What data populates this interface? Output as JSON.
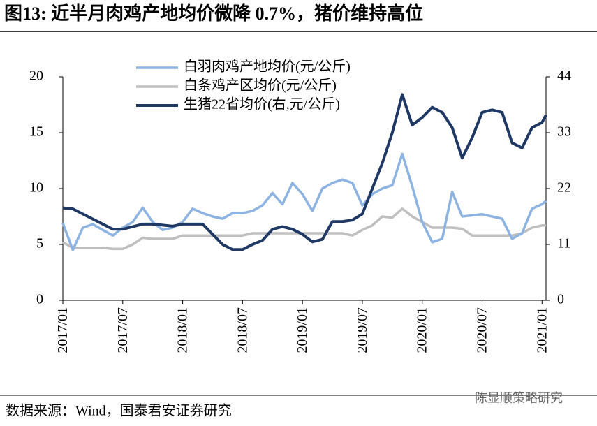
{
  "chart_data": {
    "type": "line",
    "title": "图13: 近半月肉鸡产地均价微降 0.7%，猪价维持高位",
    "source": "数据来源：Wind，国泰君安证券研究",
    "watermark": "陈显顺策略研究",
    "legend": "upper left",
    "x": [
      0,
      1,
      2,
      3,
      4,
      5,
      6,
      7,
      8,
      9,
      10,
      11,
      12,
      13,
      14,
      15,
      16,
      17,
      18,
      19,
      20,
      21,
      22,
      23,
      24,
      25,
      26,
      27,
      28,
      29,
      30,
      31,
      32,
      33,
      34,
      35,
      36,
      37,
      38,
      39,
      40,
      41,
      42,
      43,
      44,
      45,
      46,
      47,
      48,
      48.4
    ],
    "xlim": [
      0,
      48.4
    ],
    "xticks": [
      {
        "value": 0,
        "label": "2017/01"
      },
      {
        "value": 6,
        "label": "2017/07"
      },
      {
        "value": 12,
        "label": "2018/01"
      },
      {
        "value": 18,
        "label": "2018/07"
      },
      {
        "value": 24,
        "label": "2019/01"
      },
      {
        "value": 30,
        "label": "2019/07"
      },
      {
        "value": 36,
        "label": "2020/01"
      },
      {
        "value": 42,
        "label": "2020/07"
      },
      {
        "value": 48,
        "label": "2021/01"
      }
    ],
    "ylim": [
      0,
      20
    ],
    "yticks": [
      0,
      5,
      10,
      15,
      20
    ],
    "y2lim": [
      0,
      44
    ],
    "y2ticks": [
      0,
      11,
      22,
      33,
      44
    ],
    "series": [
      {
        "name": "白羽肉鸡产地均价(元/公斤)",
        "color": "#8db3e2",
        "axis": "y",
        "values": [
          6.9,
          4.5,
          6.5,
          6.8,
          6.3,
          5.8,
          6.5,
          7,
          8.3,
          7,
          6.3,
          6.5,
          7,
          8.2,
          7.8,
          7.5,
          7.3,
          7.8,
          7.8,
          8,
          8.5,
          9.6,
          8.6,
          10.5,
          9.5,
          8,
          10,
          10.5,
          10.8,
          10.5,
          8.5,
          9.5,
          10,
          10.3,
          13.1,
          10.2,
          7,
          5.2,
          5.5,
          9.7,
          7.5,
          7.6,
          7.7,
          7.5,
          7.3,
          5.5,
          6,
          8.2,
          8.6,
          8.9
        ]
      },
      {
        "name": "白条鸡产区均价(元/公斤)",
        "color": "#bfbfbf",
        "axis": "y",
        "values": [
          5.2,
          4.7,
          4.7,
          4.7,
          4.7,
          4.6,
          4.6,
          5,
          5.6,
          5.5,
          5.5,
          5.5,
          5.8,
          5.8,
          5.8,
          5.8,
          5.8,
          5.8,
          5.8,
          6,
          6,
          6,
          6,
          6,
          6,
          6,
          6,
          6,
          6,
          5.8,
          6.3,
          6.7,
          7.5,
          7.4,
          8.2,
          7.5,
          7,
          6.5,
          6.5,
          6.5,
          6.4,
          5.8,
          5.8,
          5.8,
          5.8,
          5.8,
          6,
          6.5,
          6.7,
          6.7
        ]
      },
      {
        "name": "生猪22省均价(右,元/公斤)",
        "color": "#1f3864",
        "axis": "y2",
        "values": [
          18.2,
          18,
          17,
          16,
          15,
          14,
          14,
          14.5,
          15,
          15,
          14.8,
          14.6,
          15,
          15,
          15,
          13,
          11,
          10,
          10,
          11,
          11.8,
          14,
          14.5,
          14,
          13,
          11.5,
          12,
          15.5,
          15.5,
          15.8,
          17,
          22,
          27,
          33,
          40.5,
          34.5,
          36,
          38,
          37,
          34,
          28,
          32,
          37,
          37.5,
          37,
          31,
          30,
          34,
          35,
          36.5
        ]
      }
    ]
  }
}
